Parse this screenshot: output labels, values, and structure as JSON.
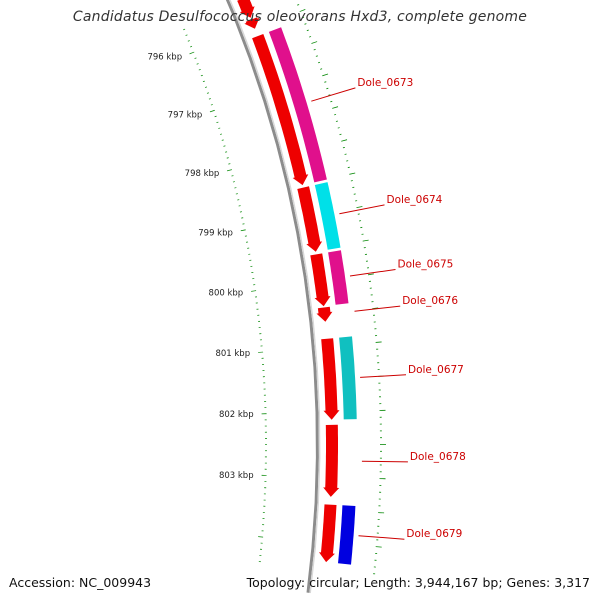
{
  "title": "Candidatus Desulfococcus oleovorans Hxd3, complete genome",
  "footer": {
    "accession": "Accession: NC_009943",
    "stats": "Topology: circular; Length: 3,944,167 bp; Genes: 3,317"
  },
  "colors": {
    "backbone": "#8c8c8c",
    "gene_arrows": "#ee0000",
    "tick_marks": "#0a8a0a",
    "label_text": "#cc0000",
    "magenta_feature": "#e0108c",
    "cyan_feature": "#00e0e8",
    "teal_feature": "#10c0c0",
    "blue_feature": "#0000e0"
  },
  "scale": [
    {
      "label": "796 kbp",
      "kbp": 796
    },
    {
      "label": "797 kbp",
      "kbp": 797
    },
    {
      "label": "798 kbp",
      "kbp": 798
    },
    {
      "label": "799 kbp",
      "kbp": 799
    },
    {
      "label": "800 kbp",
      "kbp": 800
    },
    {
      "label": "801 kbp",
      "kbp": 801
    },
    {
      "label": "802 kbp",
      "kbp": 802
    },
    {
      "label": "803 kbp",
      "kbp": 803
    }
  ],
  "genes": [
    {
      "label": "",
      "start_kbp": 795.5,
      "end_kbp": 795.82,
      "strand": "+",
      "category": ""
    },
    {
      "label": "",
      "start_kbp": 795.85,
      "end_kbp": 796.0,
      "strand": "+",
      "category": ""
    },
    {
      "label": "Dole_0673",
      "start_kbp": 796.12,
      "end_kbp": 798.5,
      "strand": "+",
      "category": "magenta"
    },
    {
      "label": "Dole_0674",
      "start_kbp": 798.54,
      "end_kbp": 799.54,
      "strand": "+",
      "category": "cyan"
    },
    {
      "label": "Dole_0675",
      "start_kbp": 799.58,
      "end_kbp": 800.38,
      "strand": "+",
      "category": "magenta"
    },
    {
      "label": "Dole_0676",
      "start_kbp": 800.4,
      "end_kbp": 800.62,
      "strand": "+",
      "category": ""
    },
    {
      "label": "Dole_0677",
      "start_kbp": 800.88,
      "end_kbp": 802.12,
      "strand": "+",
      "category": "teal"
    },
    {
      "label": "Dole_0678",
      "start_kbp": 802.2,
      "end_kbp": 803.3,
      "strand": "+",
      "category": ""
    },
    {
      "label": "Dole_0679",
      "start_kbp": 803.42,
      "end_kbp": 804.3,
      "strand": "+",
      "category": "blue"
    }
  ]
}
